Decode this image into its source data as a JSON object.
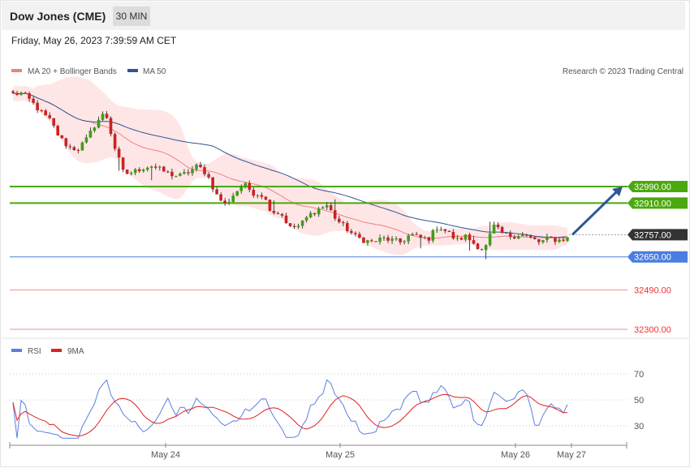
{
  "header": {
    "title": "Dow Jones (CME)",
    "timeframe": "30 MIN",
    "datetime": "Friday, May 26, 2023 7:39:59 AM CET"
  },
  "legend": {
    "ma20": "MA 20 + Bollinger Bands",
    "ma50": "MA 50",
    "copyright": "Research © 2023 Trading Central",
    "rsi": "RSI",
    "rsi_ma": "9MA"
  },
  "colors": {
    "ma20": "#f08080",
    "bands": "#ffe2e2",
    "ma50": "#2f5597",
    "resistance": "#4ca80f",
    "pivot": "#4a7ee0",
    "support": "#ee3333",
    "last": "#333333",
    "up_candle": "#3da012",
    "down_candle": "#cc2222",
    "rsi": "#5b7fe0",
    "rsi_ma": "#e02020"
  },
  "chart_data": {
    "type": "candlestick",
    "price_levels": [
      {
        "value": "32990.00",
        "kind": "resistance"
      },
      {
        "value": "32910.00",
        "kind": "resistance"
      },
      {
        "value": "32757.00",
        "kind": "last"
      },
      {
        "value": "32650.00",
        "kind": "pivot"
      },
      {
        "value": "32490.00",
        "kind": "support"
      },
      {
        "value": "32300.00",
        "kind": "support"
      }
    ],
    "x_ticks": [
      "May 24",
      "May 25",
      "May 26",
      "May 27"
    ],
    "rsi_ticks": [
      "70",
      "50",
      "30"
    ],
    "target_arrow": {
      "from": 32757,
      "to": 32990
    },
    "close_path": [
      33438,
      33440,
      33400,
      33350,
      33310,
      33230,
      33180,
      33170,
      33220,
      33300,
      33350,
      33180,
      33050,
      33060,
      33080,
      33090,
      33070,
      33050,
      33040,
      33060,
      33090,
      33050,
      32950,
      32900,
      32960,
      33000,
      32960,
      32950,
      32870,
      32860,
      32790,
      32800,
      32850,
      32880,
      32900,
      32830,
      32790,
      32750,
      32730,
      32720,
      32740,
      32730,
      32720,
      32760,
      32740,
      32740,
      32800,
      32770,
      32730,
      32750,
      32710,
      32680,
      32800,
      32760,
      32750,
      32760,
      32740,
      32720,
      32740,
      32730,
      32740
    ]
  }
}
